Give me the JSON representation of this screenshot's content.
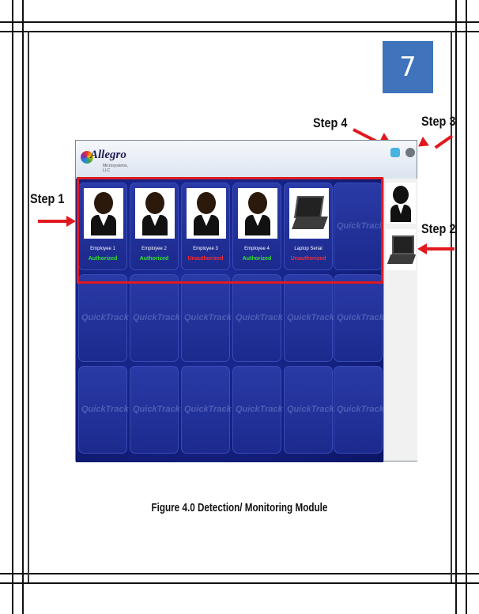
{
  "page_number": "7",
  "steps": {
    "step1": "Step 1",
    "step2": "Step 2",
    "step3": "Step 3",
    "step4": "Step 4"
  },
  "app": {
    "logo_text": "Allegro",
    "logo_subtext": "Microsystems, LLC",
    "watermark": "QuickTrack",
    "tiles": [
      {
        "name": "Employee 1",
        "status": "Authorized",
        "type": "person"
      },
      {
        "name": "Employee 2",
        "status": "Authorized",
        "type": "person"
      },
      {
        "name": "Employee 3",
        "status": "Unauthorized",
        "type": "person"
      },
      {
        "name": "Employee 4",
        "status": "Authorized",
        "type": "person"
      },
      {
        "name": "Laptop Serial",
        "status": "Unauthorized",
        "type": "laptop"
      }
    ],
    "status_colors": {
      "Authorized": "#34e12a",
      "Unauthorized": "#ff2a2a"
    },
    "icons": [
      "settings-icon",
      "power-icon"
    ]
  },
  "caption": "Figure 4.0 Detection/ Monitoring Module"
}
